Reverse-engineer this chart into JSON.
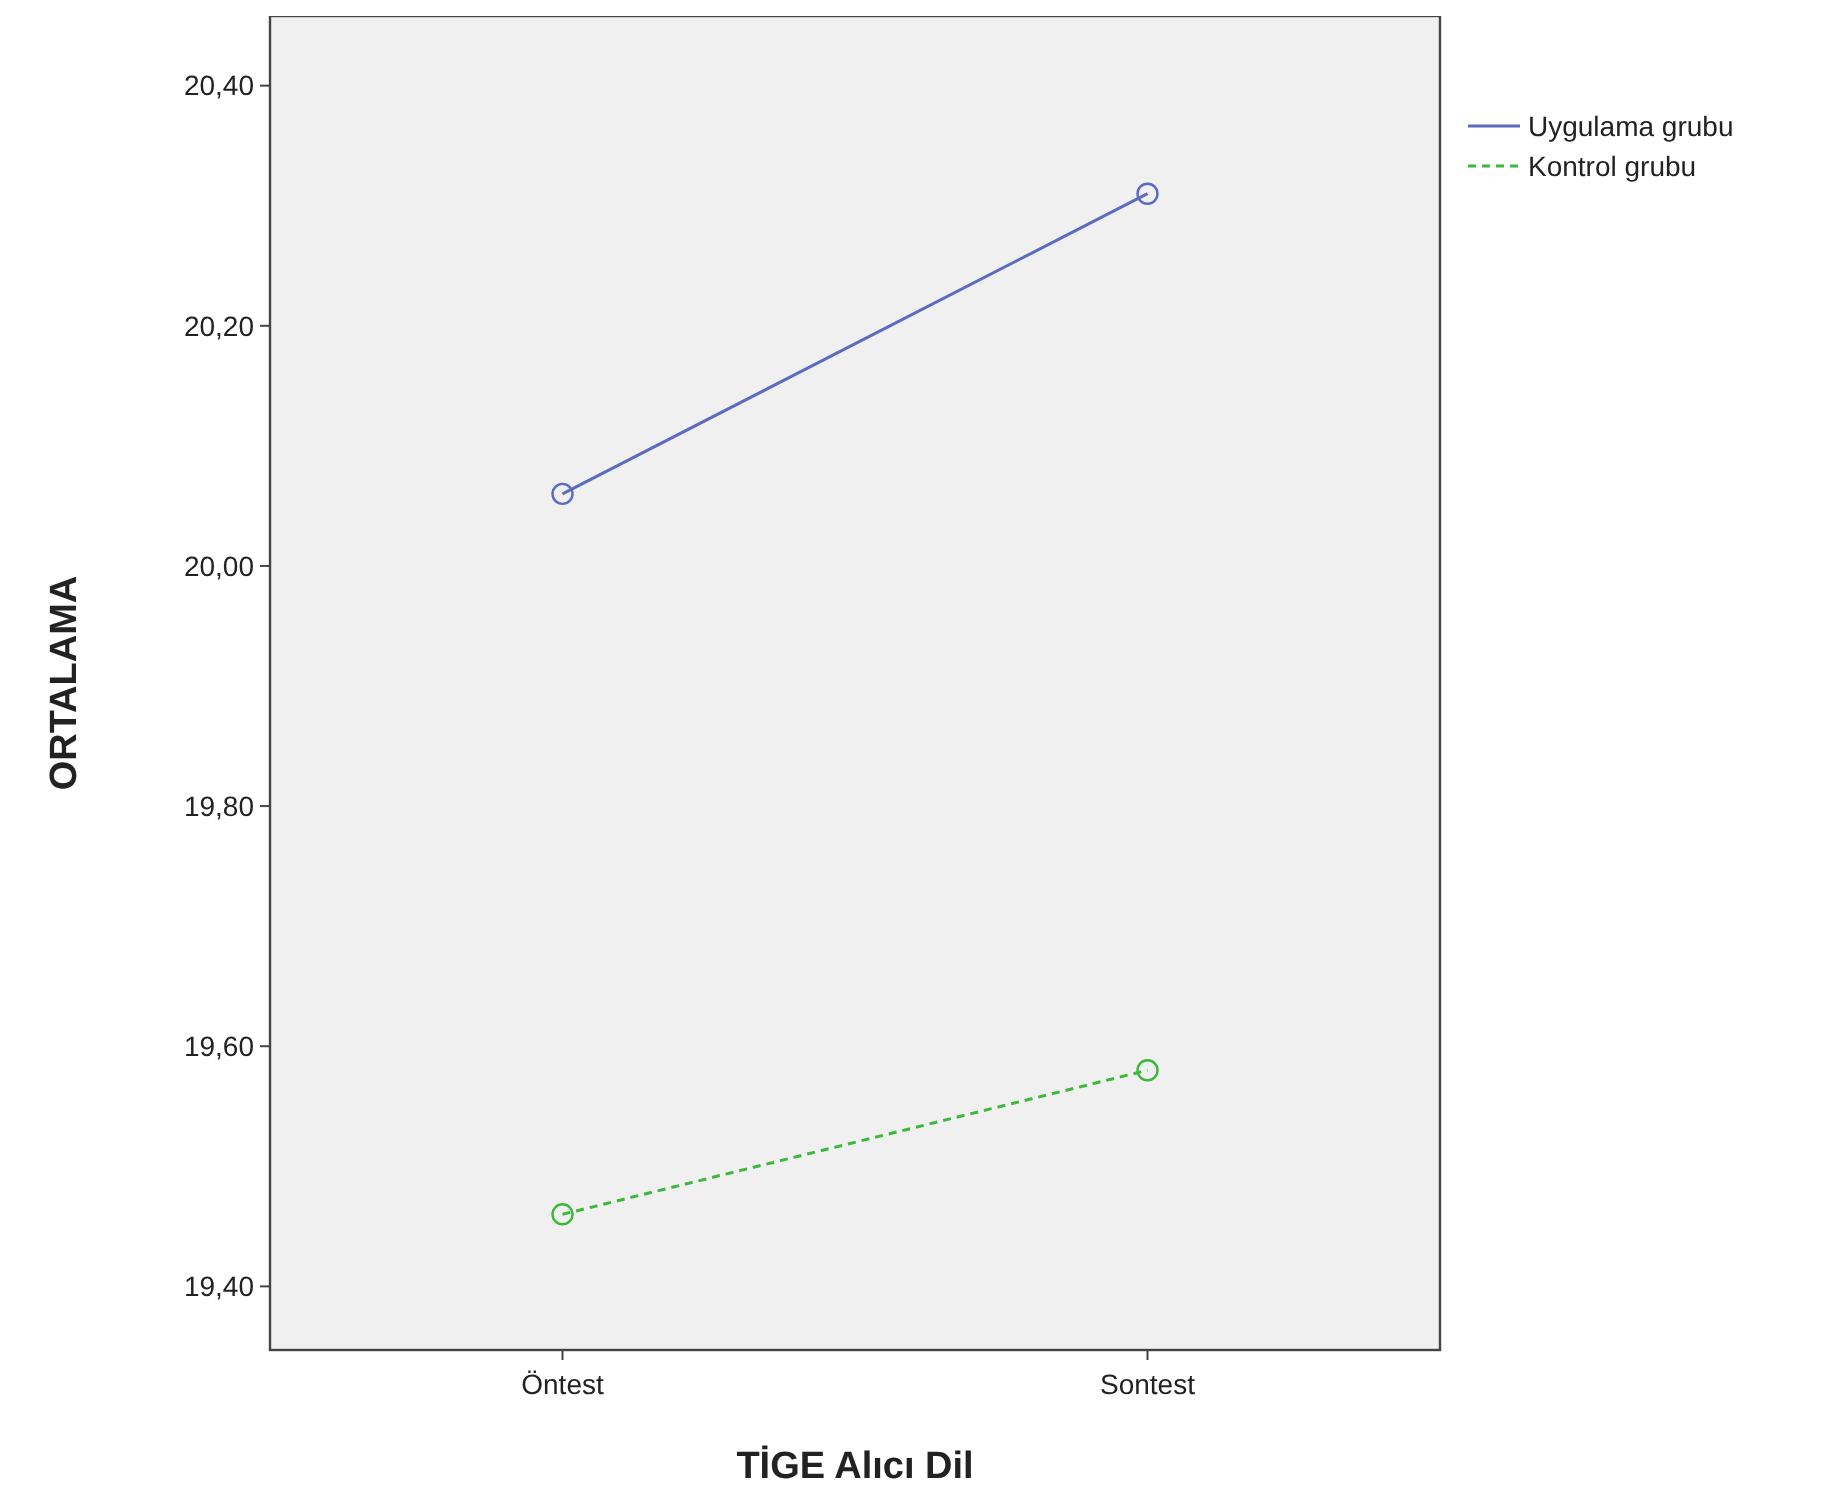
{
  "chart_data": {
    "type": "line",
    "xlabel": "TİGE Alıcı Dil",
    "ylabel": "ORTALAMA",
    "categories": [
      "Öntest",
      "Sontest"
    ],
    "series": [
      {
        "name": "Uygulama grubu",
        "color": "#5b6bc0",
        "values": [
          20.06,
          20.31
        ],
        "line_style": "solid"
      },
      {
        "name": "Kontrol grubu",
        "color": "#3cb83c",
        "values": [
          19.46,
          19.58
        ],
        "line_style": "dashed"
      }
    ],
    "ylim": [
      19.347,
      20.458
    ],
    "yticks": [
      {
        "value": 19.4,
        "label": "19,40"
      },
      {
        "value": 19.6,
        "label": "19,60"
      },
      {
        "value": 19.8,
        "label": "19,80"
      },
      {
        "value": 20.0,
        "label": "20,00"
      },
      {
        "value": 20.2,
        "label": "20,20"
      },
      {
        "value": 20.4,
        "label": "20,40"
      }
    ],
    "marker": "circle",
    "legend": "top right",
    "grid": false
  }
}
